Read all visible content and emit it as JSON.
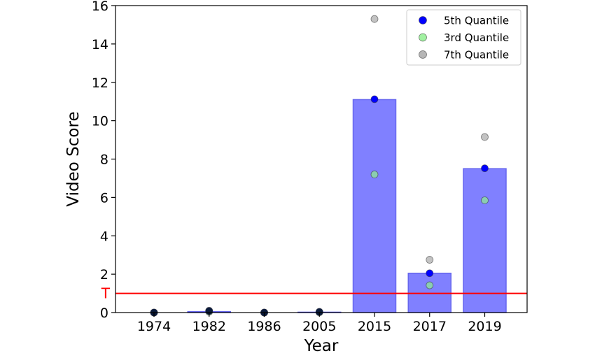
{
  "chart_data": {
    "type": "bar",
    "title": "",
    "xlabel": "Year",
    "ylabel": "Video Score",
    "categories": [
      "1974",
      "1982",
      "1986",
      "2005",
      "2015",
      "2017",
      "2019"
    ],
    "ylim": [
      0,
      16
    ],
    "yticks": [
      0,
      2,
      4,
      6,
      8,
      10,
      12,
      14,
      16
    ],
    "bar_color": "#8080ff",
    "bar_edge_color": "#6666ee",
    "bars": [
      0.0,
      0.05,
      0.0,
      0.02,
      11.1,
      2.05,
      7.5
    ],
    "series": [
      {
        "name": "5th Quantile",
        "color": "#0000ff",
        "values": [
          0.0,
          0.08,
          0.0,
          0.03,
          11.12,
          2.05,
          7.52
        ]
      },
      {
        "name": "3rd Quantile",
        "color": "#90ee90",
        "values": [
          0.0,
          0.04,
          0.0,
          0.01,
          7.2,
          1.42,
          5.85
        ]
      },
      {
        "name": "7th Quantile",
        "color": "#a9a9a9",
        "values": [
          0.0,
          0.1,
          0.0,
          0.04,
          15.3,
          2.75,
          9.15
        ]
      }
    ],
    "threshold": {
      "value": 1.0,
      "label": "T",
      "color": "#ff0000"
    },
    "legend_position": "top-right",
    "grid": false
  }
}
